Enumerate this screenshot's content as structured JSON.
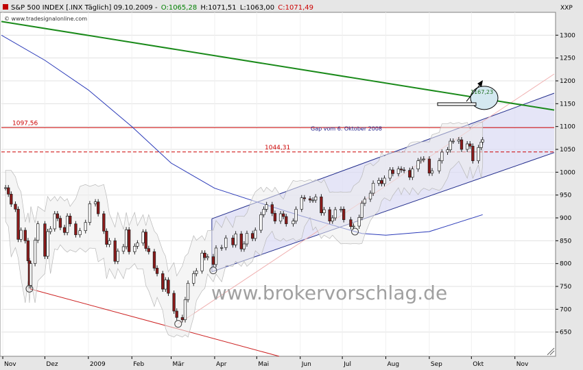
{
  "header": {
    "instrument": "S&P 500 INDEX [.INX Täglich] 09.10.2009 -",
    "open": "O:1065,28",
    "high": "H:1071,51",
    "low": "L:1063,00",
    "close": "C:1071,49",
    "source": "© www.tradesignalonline.com",
    "symbol": "XXP",
    "open_color": "#008000",
    "close_color": "#cc0000"
  },
  "watermark": "www.brokervorschlag.de",
  "chart_data": {
    "type": "candlestick",
    "title": "S&P 500 INDEX [.INX Täglich] 09.10.2009",
    "ylim": [
      597,
      1350
    ],
    "yticks": [
      650,
      700,
      750,
      800,
      850,
      900,
      950,
      1000,
      1050,
      1100,
      1150,
      1200,
      1250,
      1300
    ],
    "x_labels": [
      "Nov",
      "Dez",
      "2009",
      "Feb",
      "Mär",
      "Apr",
      "Mai",
      "Jun",
      "Jul",
      "Aug",
      "Sep",
      "Okt",
      "Nov"
    ],
    "close_series": [
      [
        "2008-11-03",
        966
      ],
      [
        "2008-11-05",
        952
      ],
      [
        "2008-11-07",
        930
      ],
      [
        "2008-11-10",
        919
      ],
      [
        "2008-11-12",
        853
      ],
      [
        "2008-11-14",
        873
      ],
      [
        "2008-11-17",
        850
      ],
      [
        "2008-11-19",
        806
      ],
      [
        "2008-11-20",
        752
      ],
      [
        "2008-11-21",
        800
      ],
      [
        "2008-11-24",
        851
      ],
      [
        "2008-11-26",
        887
      ],
      [
        "2008-12-01",
        816
      ],
      [
        "2008-12-03",
        870
      ],
      [
        "2008-12-05",
        876
      ],
      [
        "2008-12-08",
        909
      ],
      [
        "2008-12-10",
        899
      ],
      [
        "2008-12-12",
        879
      ],
      [
        "2008-12-15",
        868
      ],
      [
        "2008-12-17",
        904
      ],
      [
        "2008-12-19",
        887
      ],
      [
        "2008-12-23",
        863
      ],
      [
        "2008-12-26",
        872
      ],
      [
        "2008-12-30",
        890
      ],
      [
        "2009-01-02",
        931
      ],
      [
        "2009-01-06",
        935
      ],
      [
        "2009-01-08",
        909
      ],
      [
        "2009-01-12",
        871
      ],
      [
        "2009-01-14",
        842
      ],
      [
        "2009-01-16",
        850
      ],
      [
        "2009-01-20",
        805
      ],
      [
        "2009-01-22",
        827
      ],
      [
        "2009-01-26",
        837
      ],
      [
        "2009-01-28",
        874
      ],
      [
        "2009-01-30",
        826
      ],
      [
        "2009-02-03",
        838
      ],
      [
        "2009-02-05",
        845
      ],
      [
        "2009-02-09",
        869
      ],
      [
        "2009-02-11",
        833
      ],
      [
        "2009-02-13",
        826
      ],
      [
        "2009-02-17",
        790
      ],
      [
        "2009-02-19",
        778
      ],
      [
        "2009-02-23",
        744
      ],
      [
        "2009-02-25",
        764
      ],
      [
        "2009-02-27",
        735
      ],
      [
        "2009-03-03",
        696
      ],
      [
        "2009-03-05",
        682
      ],
      [
        "2009-03-09",
        677
      ],
      [
        "2009-03-11",
        721
      ],
      [
        "2009-03-13",
        757
      ],
      [
        "2009-03-17",
        778
      ],
      [
        "2009-03-19",
        784
      ],
      [
        "2009-03-23",
        823
      ],
      [
        "2009-03-25",
        813
      ],
      [
        "2009-03-27",
        815
      ],
      [
        "2009-03-31",
        798
      ],
      [
        "2009-04-02",
        834
      ],
      [
        "2009-04-06",
        835
      ],
      [
        "2009-04-09",
        856
      ],
      [
        "2009-04-14",
        841
      ],
      [
        "2009-04-16",
        865
      ],
      [
        "2009-04-20",
        832
      ],
      [
        "2009-04-22",
        843
      ],
      [
        "2009-04-24",
        866
      ],
      [
        "2009-04-28",
        855
      ],
      [
        "2009-04-30",
        873
      ],
      [
        "2009-05-04",
        907
      ],
      [
        "2009-05-06",
        919
      ],
      [
        "2009-05-08",
        929
      ],
      [
        "2009-05-12",
        910
      ],
      [
        "2009-05-14",
        893
      ],
      [
        "2009-05-18",
        909
      ],
      [
        "2009-05-20",
        903
      ],
      [
        "2009-05-22",
        887
      ],
      [
        "2009-05-27",
        893
      ],
      [
        "2009-05-29",
        919
      ],
      [
        "2009-06-02",
        944
      ],
      [
        "2009-06-04",
        942
      ],
      [
        "2009-06-08",
        939
      ],
      [
        "2009-06-10",
        939
      ],
      [
        "2009-06-12",
        946
      ],
      [
        "2009-06-16",
        911
      ],
      [
        "2009-06-18",
        918
      ],
      [
        "2009-06-22",
        893
      ],
      [
        "2009-06-24",
        900
      ],
      [
        "2009-06-26",
        918
      ],
      [
        "2009-06-30",
        919
      ],
      [
        "2009-07-02",
        896
      ],
      [
        "2009-07-07",
        881
      ],
      [
        "2009-07-09",
        882
      ],
      [
        "2009-07-13",
        901
      ],
      [
        "2009-07-15",
        932
      ],
      [
        "2009-07-17",
        941
      ],
      [
        "2009-07-21",
        954
      ],
      [
        "2009-07-23",
        976
      ],
      [
        "2009-07-27",
        982
      ],
      [
        "2009-07-29",
        975
      ],
      [
        "2009-07-31",
        987
      ],
      [
        "2009-08-04",
        1005
      ],
      [
        "2009-08-06",
        997
      ],
      [
        "2009-08-10",
        1007
      ],
      [
        "2009-08-12",
        1005
      ],
      [
        "2009-08-14",
        1004
      ],
      [
        "2009-08-18",
        989
      ],
      [
        "2009-08-20",
        1007
      ],
      [
        "2009-08-24",
        1025
      ],
      [
        "2009-08-26",
        1028
      ],
      [
        "2009-08-28",
        1029
      ],
      [
        "2009-09-01",
        998
      ],
      [
        "2009-09-03",
        1003
      ],
      [
        "2009-09-08",
        1025
      ],
      [
        "2009-09-10",
        1044
      ],
      [
        "2009-09-14",
        1049
      ],
      [
        "2009-09-16",
        1068
      ],
      [
        "2009-09-18",
        1068
      ],
      [
        "2009-09-22",
        1071
      ],
      [
        "2009-09-24",
        1050
      ],
      [
        "2009-09-28",
        1062
      ],
      [
        "2009-09-30",
        1057
      ],
      [
        "2009-10-02",
        1025
      ],
      [
        "2009-10-06",
        1054
      ],
      [
        "2009-10-08",
        1066
      ],
      [
        "2009-10-09",
        1071
      ]
    ],
    "moving_average_series": [
      [
        "2008-10-31",
        1300
      ],
      [
        "2008-12-01",
        1245
      ],
      [
        "2009-01-01",
        1180
      ],
      [
        "2009-02-01",
        1100
      ],
      [
        "2009-03-01",
        1020
      ],
      [
        "2009-04-01",
        965
      ],
      [
        "2009-05-01",
        935
      ],
      [
        "2009-06-01",
        905
      ],
      [
        "2009-07-01",
        878
      ],
      [
        "2009-07-15",
        866
      ],
      [
        "2009-08-01",
        862
      ],
      [
        "2009-09-01",
        870
      ],
      [
        "2009-10-09",
        907
      ]
    ],
    "long_trend_line": {
      "from": [
        "2008-10-31",
        1330
      ],
      "to": [
        "2009-11-29",
        1136
      ]
    },
    "lower_trend_line": {
      "from": [
        "2008-11-20",
        745
      ],
      "to": [
        "2009-05-17",
        597
      ]
    },
    "channel": {
      "upper_from": [
        "2009-03-30",
        898
      ],
      "upper_to": [
        "2009-11-29",
        1173
      ],
      "lower_from": [
        "2009-03-30",
        782
      ],
      "lower_to": [
        "2009-11-29",
        1043
      ],
      "fill": "#dcdcf4"
    },
    "levels": [
      {
        "value": 1097.56,
        "label": "1097,56",
        "style": "solid",
        "color": "#cc0000"
      },
      {
        "value": 1044.31,
        "label": "1044,31",
        "style": "dashed",
        "color": "#cc0000"
      }
    ],
    "annotations": {
      "gap_text": "Gap vom 6. Oktober 2008",
      "target_label": "1167,23",
      "target_value": 1167.23
    }
  }
}
